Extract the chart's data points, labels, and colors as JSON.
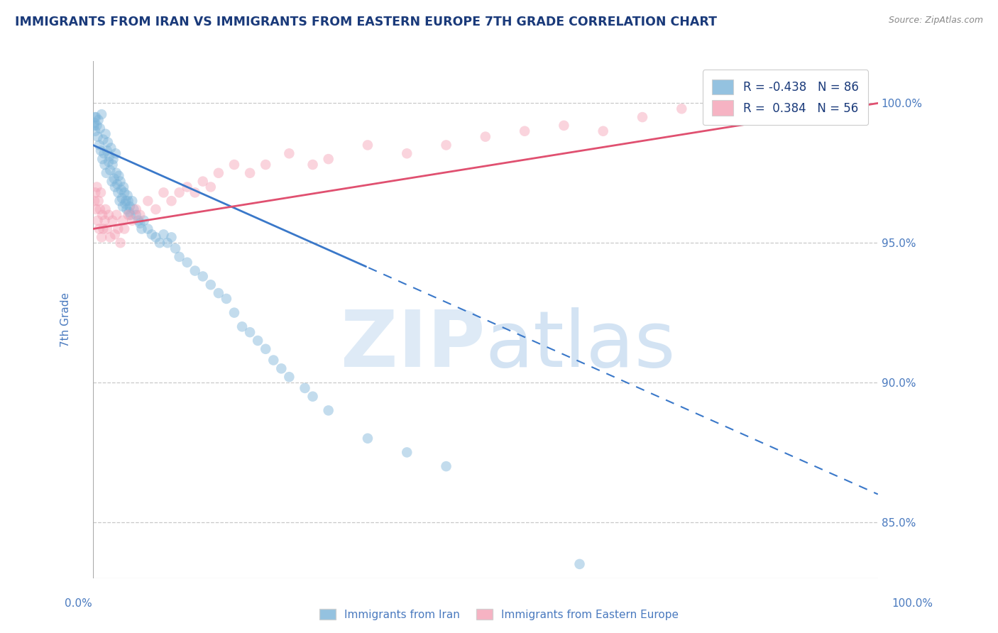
{
  "title": "IMMIGRANTS FROM IRAN VS IMMIGRANTS FROM EASTERN EUROPE 7TH GRADE CORRELATION CHART",
  "source": "Source: ZipAtlas.com",
  "ylabel": "7th Grade",
  "legend_labels_bottom": [
    "Immigrants from Iran",
    "Immigrants from Eastern Europe"
  ],
  "watermark_zip": "ZIP",
  "watermark_atlas": "atlas",
  "blue_color": "#7ab3d9",
  "pink_color": "#f4a0b5",
  "trendline_blue_color": "#3a78c9",
  "trendline_pink_color": "#e05070",
  "background_color": "#ffffff",
  "grid_color": "#c8c8c8",
  "title_color": "#1a3a7a",
  "axis_label_color": "#4a7abf",
  "y_ticks_right": [
    85.0,
    90.0,
    95.0,
    100.0
  ],
  "xlim": [
    0,
    100
  ],
  "ylim": [
    83,
    101.5
  ],
  "R_blue": -0.438,
  "N_blue": 86,
  "R_pink": 0.384,
  "N_pink": 56,
  "blue_scatter_x": [
    0.2,
    0.3,
    0.4,
    0.5,
    0.6,
    0.7,
    0.8,
    0.9,
    1.0,
    1.1,
    1.2,
    1.3,
    1.4,
    1.5,
    1.6,
    1.7,
    1.8,
    1.9,
    2.0,
    2.1,
    2.2,
    2.3,
    2.4,
    2.5,
    2.6,
    2.7,
    2.8,
    2.9,
    3.0,
    3.1,
    3.2,
    3.3,
    3.4,
    3.5,
    3.6,
    3.7,
    3.8,
    3.9,
    4.0,
    4.1,
    4.2,
    4.3,
    4.4,
    4.5,
    4.6,
    4.7,
    4.8,
    5.0,
    5.2,
    5.5,
    5.8,
    6.0,
    6.2,
    6.5,
    7.0,
    7.5,
    8.0,
    8.5,
    9.0,
    9.5,
    10.0,
    10.5,
    11.0,
    12.0,
    13.0,
    14.0,
    15.0,
    16.0,
    17.0,
    18.0,
    19.0,
    20.0,
    21.0,
    22.0,
    23.0,
    24.0,
    25.0,
    27.0,
    28.0,
    30.0,
    35.0,
    40.0,
    45.0,
    62.0,
    0.15,
    0.25
  ],
  "blue_scatter_y": [
    99.3,
    99.0,
    99.5,
    99.2,
    98.8,
    99.4,
    98.5,
    99.1,
    98.3,
    99.6,
    98.0,
    98.7,
    98.2,
    97.8,
    98.9,
    97.5,
    98.3,
    98.6,
    97.9,
    98.1,
    97.6,
    98.4,
    97.2,
    97.8,
    98.0,
    97.3,
    97.0,
    98.2,
    97.5,
    97.1,
    96.8,
    97.4,
    96.5,
    97.2,
    96.9,
    96.6,
    96.3,
    97.0,
    96.8,
    96.4,
    96.5,
    96.2,
    96.7,
    96.5,
    96.1,
    96.3,
    96.0,
    96.5,
    96.2,
    96.0,
    95.8,
    95.7,
    95.5,
    95.8,
    95.5,
    95.3,
    95.2,
    95.0,
    95.3,
    95.0,
    95.2,
    94.8,
    94.5,
    94.3,
    94.0,
    93.8,
    93.5,
    93.2,
    93.0,
    92.5,
    92.0,
    91.8,
    91.5,
    91.2,
    90.8,
    90.5,
    90.2,
    89.8,
    89.5,
    89.0,
    88.0,
    87.5,
    87.0,
    83.5,
    99.2,
    99.5
  ],
  "pink_scatter_x": [
    0.2,
    0.3,
    0.4,
    0.5,
    0.6,
    0.7,
    0.8,
    0.9,
    1.0,
    1.1,
    1.2,
    1.3,
    1.5,
    1.6,
    1.8,
    2.0,
    2.2,
    2.5,
    2.8,
    3.0,
    3.2,
    3.5,
    3.8,
    4.0,
    4.5,
    5.0,
    5.5,
    6.0,
    7.0,
    8.0,
    9.0,
    10.0,
    11.0,
    12.0,
    13.0,
    14.0,
    15.0,
    16.0,
    18.0,
    20.0,
    22.0,
    25.0,
    28.0,
    30.0,
    35.0,
    40.0,
    45.0,
    50.0,
    55.0,
    60.0,
    65.0,
    70.0,
    75.0,
    80.0,
    85.0,
    90.0
  ],
  "pink_scatter_y": [
    96.5,
    96.8,
    96.2,
    97.0,
    95.8,
    96.5,
    95.5,
    96.2,
    96.8,
    95.2,
    96.0,
    95.5,
    95.8,
    96.2,
    95.5,
    96.0,
    95.2,
    95.8,
    95.3,
    96.0,
    95.5,
    95.0,
    95.8,
    95.5,
    96.0,
    95.8,
    96.2,
    96.0,
    96.5,
    96.2,
    96.8,
    96.5,
    96.8,
    97.0,
    96.8,
    97.2,
    97.0,
    97.5,
    97.8,
    97.5,
    97.8,
    98.2,
    97.8,
    98.0,
    98.5,
    98.2,
    98.5,
    98.8,
    99.0,
    99.2,
    99.0,
    99.5,
    99.8,
    99.5,
    99.8,
    100.0
  ]
}
